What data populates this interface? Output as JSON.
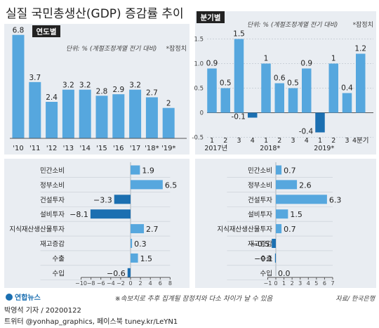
{
  "title": "실질 국민총생산(GDP) 증감률 추이",
  "note": "※속보치로 추후 집계될 잠정치와 다소 차이가 날 수 있음",
  "source": "자료/ 한국은행",
  "logo_text": "연합뉴스",
  "byline": "박영석 기자 / 20200122",
  "social": "트위터 @yonhap_graphics, 페이스북 tuney.kr/LeYN1",
  "colors": {
    "bar": "#56a7de",
    "bar_dark": "#1b6fb1",
    "panel": "#e9edf2",
    "axis": "#555555"
  },
  "chart_data": [
    {
      "id": "annual",
      "type": "bar",
      "tag": "연도별",
      "unit_note": "단위: % (계절조정계열 전기 대비)",
      "star_note": "*잠정치",
      "categories": [
        "'10",
        "'11",
        "'12",
        "'13",
        "'14",
        "'15",
        "'16",
        "'17",
        "'18*",
        "'19*"
      ],
      "values": [
        6.8,
        3.7,
        2.4,
        3.2,
        3.2,
        2.8,
        2.9,
        3.2,
        2.7,
        2.0
      ],
      "ylim": [
        0,
        7.2
      ]
    },
    {
      "id": "quarterly",
      "type": "bar",
      "tag": "분기별",
      "unit_note": "단위: % (계절조정계열 전기 대비)",
      "star_note": "*잠정치",
      "categories": [
        "1",
        "2",
        "3",
        "4",
        "1",
        "2",
        "3",
        "4",
        "1",
        "2",
        "3",
        "4분기"
      ],
      "year_labels": [
        "2017년",
        "2018*",
        "2019*"
      ],
      "values": [
        0.9,
        0.5,
        1.5,
        -0.1,
        1.0,
        0.6,
        0.5,
        0.9,
        -0.4,
        1.0,
        0.4,
        1.2
      ],
      "ylim": [
        -0.5,
        1.5
      ],
      "yticks": [
        1.5,
        1.0,
        0.5,
        0,
        -0.5
      ],
      "ytick_labels": [
        "1.5",
        "1.0",
        "0.5",
        "0",
        "-0.5"
      ]
    },
    {
      "id": "annual-contrib",
      "type": "bar",
      "orientation": "horizontal",
      "categories": [
        "민간소비",
        "정부소비",
        "건설투자",
        "설비투자",
        "지식재산생산물투자",
        "재고증감",
        "수출",
        "수입"
      ],
      "values": [
        1.9,
        6.5,
        -3.3,
        -8.1,
        2.7,
        0.3,
        1.5,
        -0.6
      ],
      "value_labels": [
        "1.9",
        "6.5",
        "−3.3",
        "−8.1",
        "2.7",
        "0.3",
        "1.5",
        "−0.6"
      ],
      "xlim": [
        -10,
        8
      ],
      "xticks": [
        -10,
        -8,
        -6,
        -4,
        -2,
        0,
        2,
        4,
        6,
        8
      ],
      "xtick_labels": [
        "−10",
        "−8",
        "−6",
        "−4",
        "−2",
        "0",
        "2",
        "4",
        "6",
        "8"
      ]
    },
    {
      "id": "quarterly-contrib",
      "type": "bar",
      "orientation": "horizontal",
      "categories": [
        "민간소비",
        "정부소비",
        "건설투자",
        "설비투자",
        "지식재산생산물투자",
        "재고증감",
        "수출",
        "수입"
      ],
      "values": [
        0.7,
        2.6,
        6.3,
        1.5,
        0.7,
        -0.5,
        -0.1,
        0.0
      ],
      "value_labels": [
        "0.7",
        "2.6",
        "6.3",
        "1.5",
        "0.7",
        "−0.5",
        "−0.1",
        "0.0"
      ],
      "xlim": [
        -1,
        7
      ],
      "xticks": [
        -1,
        0,
        1,
        2,
        3,
        4,
        5,
        6,
        7
      ],
      "xtick_labels": [
        "−1",
        "0",
        "1",
        "2",
        "3",
        "4",
        "5",
        "6",
        "7"
      ]
    }
  ]
}
